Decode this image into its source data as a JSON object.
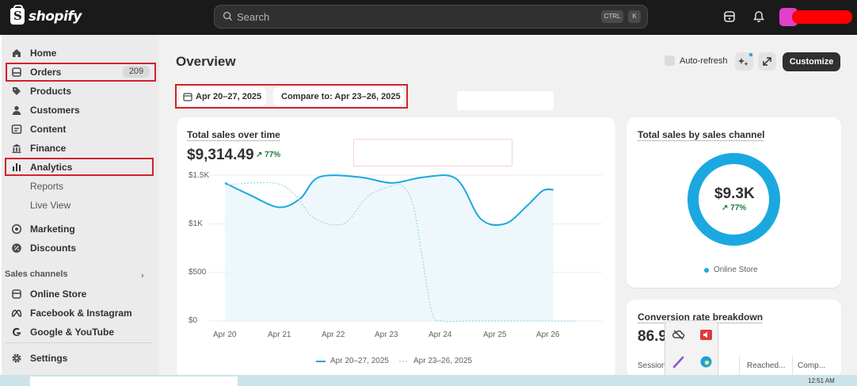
{
  "app": {
    "name": "shopify"
  },
  "search": {
    "placeholder": "Search",
    "shortcut_1": "CTRL",
    "shortcut_2": "K"
  },
  "sidebar": {
    "items": [
      {
        "label": "Home"
      },
      {
        "label": "Orders",
        "badge": "209"
      },
      {
        "label": "Products"
      },
      {
        "label": "Customers"
      },
      {
        "label": "Content"
      },
      {
        "label": "Finance"
      },
      {
        "label": "Analytics"
      },
      {
        "label": "Reports"
      },
      {
        "label": "Live View"
      },
      {
        "label": "Marketing"
      },
      {
        "label": "Discounts"
      }
    ],
    "sales_channels_label": "Sales channels",
    "channels": [
      {
        "label": "Online Store"
      },
      {
        "label": "Facebook & Instagram"
      },
      {
        "label": "Google & YouTube"
      }
    ],
    "settings_label": "Settings"
  },
  "header": {
    "title": "Overview",
    "auto_refresh": "Auto-refresh",
    "customize": "Customize",
    "date_range": "Apr 20–27, 2025",
    "compare": "Compare to: Apr 23–26, 2025"
  },
  "sales_card": {
    "title": "Total sales over time",
    "value": "$9,314.49",
    "delta": "77%",
    "legend_current": "Apr 20–27, 2025",
    "legend_previous": "Apr 23–26, 2025"
  },
  "chart_data": {
    "type": "line",
    "x": [
      "Apr 20",
      "Apr 21",
      "Apr 22",
      "Apr 23",
      "Apr 24",
      "Apr 25",
      "Apr 26"
    ],
    "y_ticks": [
      "$1.5K",
      "$1K",
      "$500",
      "$0"
    ],
    "ylim": [
      0,
      1500
    ],
    "series": [
      {
        "name": "Apr 20–27, 2025",
        "style": "solid",
        "color": "#1ba8e0",
        "points": [
          [
            0,
            1420
          ],
          [
            0.45,
            1300
          ],
          [
            1,
            1170
          ],
          [
            1.4,
            1260
          ],
          [
            1.75,
            1480
          ],
          [
            2.5,
            1480
          ],
          [
            3.1,
            1420
          ],
          [
            3.7,
            1480
          ],
          [
            4.3,
            1460
          ],
          [
            4.75,
            1050
          ],
          [
            5.2,
            1000
          ],
          [
            5.6,
            1180
          ],
          [
            5.9,
            1340
          ],
          [
            6.1,
            1350
          ]
        ]
      },
      {
        "name": "Apr 23–26, 2025",
        "style": "dotted",
        "color": "#9fd8ee",
        "points": [
          [
            0,
            1400
          ],
          [
            0.9,
            1420
          ],
          [
            1.3,
            1300
          ],
          [
            1.65,
            1060
          ],
          [
            2.2,
            1000
          ],
          [
            2.65,
            1280
          ],
          [
            3.1,
            1390
          ],
          [
            3.3,
            1390
          ],
          [
            3.5,
            1180
          ],
          [
            3.65,
            700
          ],
          [
            3.85,
            80
          ],
          [
            4.05,
            0
          ],
          [
            4.6,
            0
          ],
          [
            6.5,
            0
          ]
        ]
      }
    ],
    "grid": true
  },
  "channel_card": {
    "title": "Total sales by sales channel",
    "value": "$9.3K",
    "delta": "77%",
    "legend": "Online Store",
    "donut_color": "#1ba8e0"
  },
  "conversion_card": {
    "title": "Conversion rate breakdown",
    "value": "86.9",
    "columns": [
      "Session",
      "Reached...",
      "Comp..."
    ]
  },
  "taskbar": {
    "time": "12:51 AM"
  }
}
